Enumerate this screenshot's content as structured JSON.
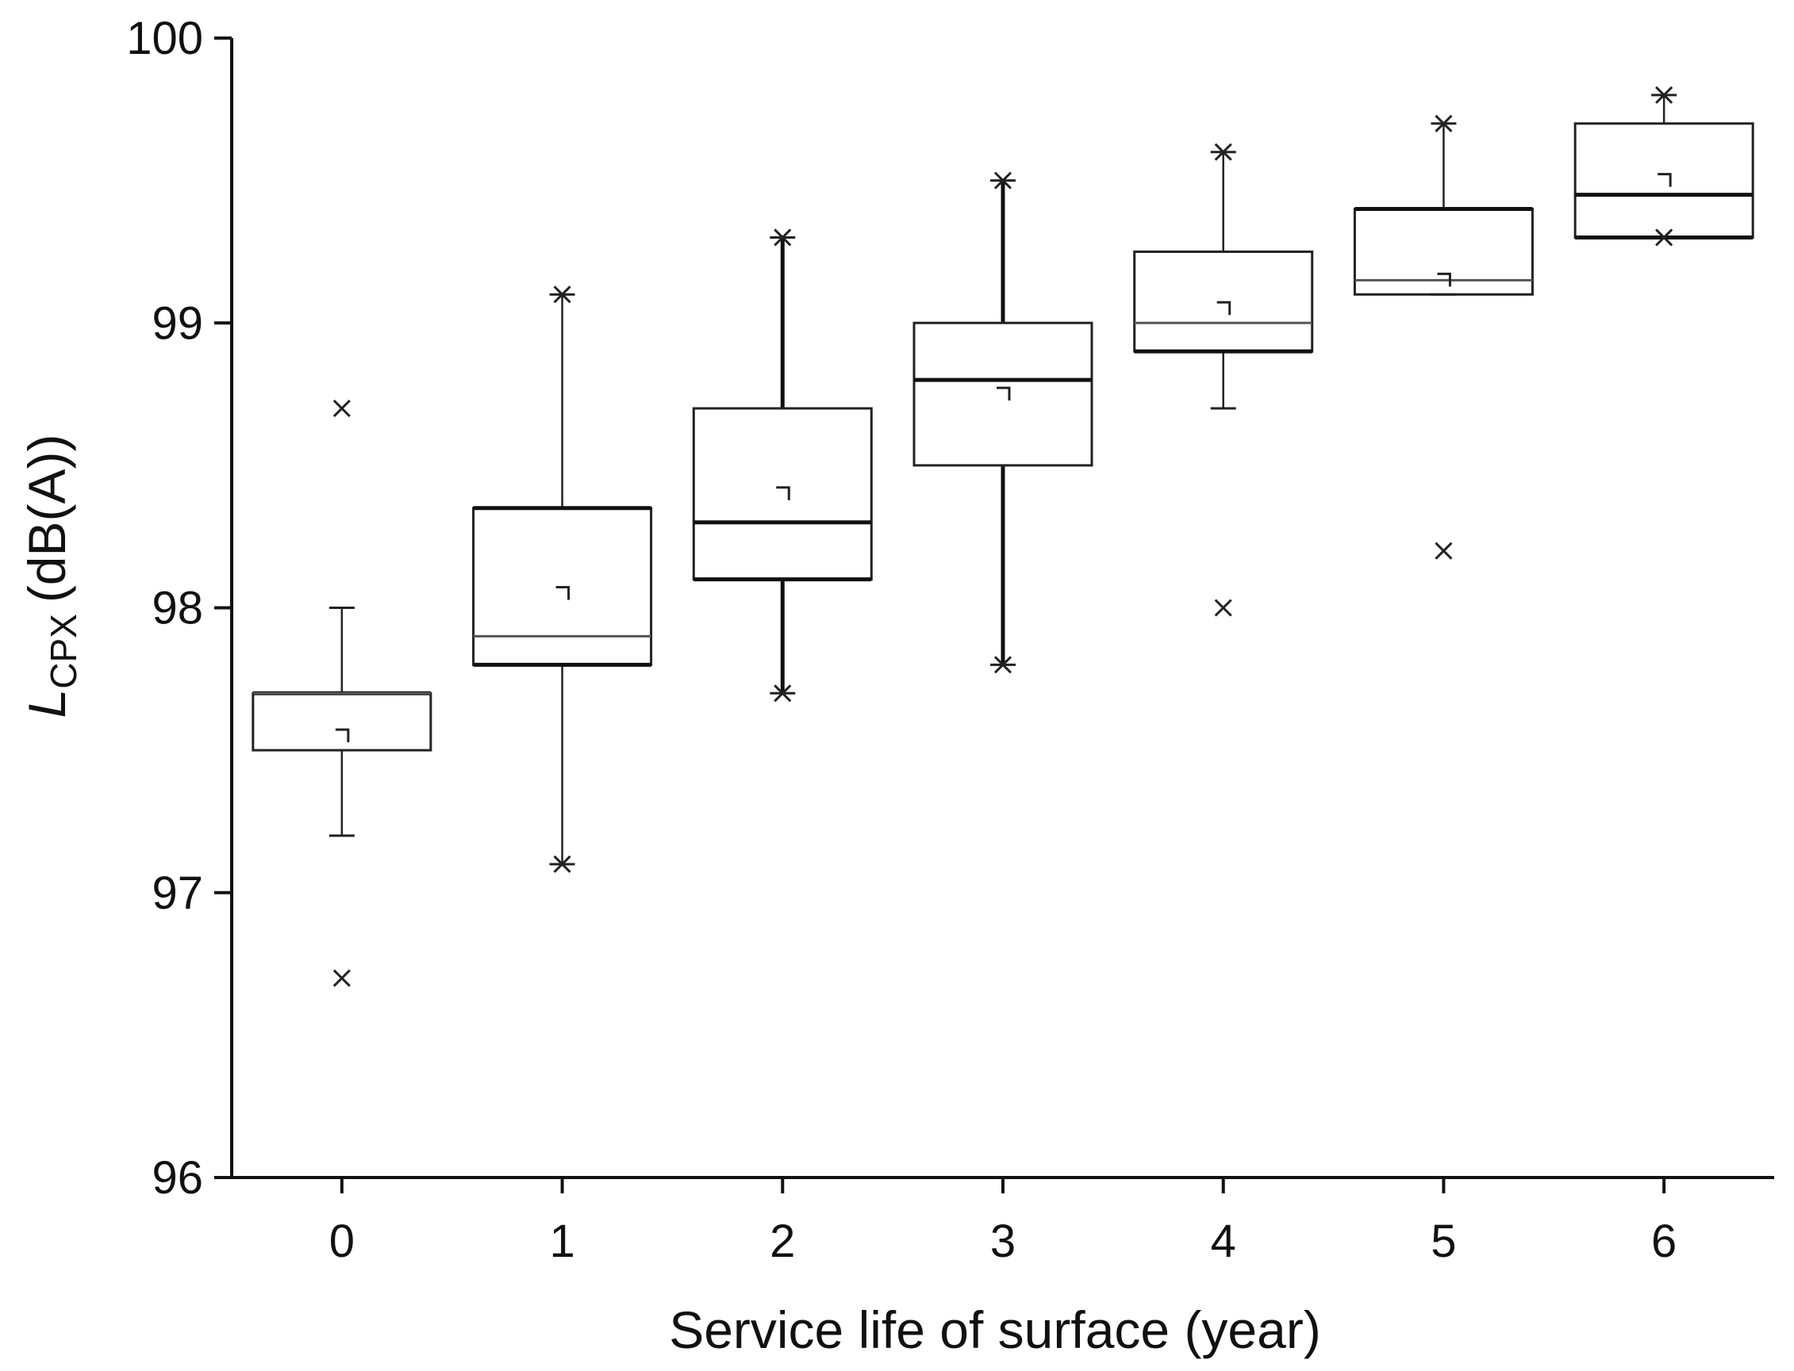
{
  "chart_data": {
    "type": "box",
    "title": "",
    "xlabel": "Service life of surface (year)",
    "ylabel_main": "L",
    "ylabel_sub": "CPX",
    "ylabel_unit": "(dB(A))",
    "ylim": [
      96,
      100
    ],
    "xlim": [
      -0.5,
      6.5
    ],
    "yticks": [
      "96",
      "97",
      "98",
      "99",
      "100"
    ],
    "xticks": [
      "0",
      "1",
      "2",
      "3",
      "4",
      "5",
      "6"
    ],
    "grid": false,
    "groups": [
      {
        "x": "0",
        "whisker_low": 97.2,
        "q1": 97.5,
        "median": 97.7,
        "q3": 97.7,
        "whisker_high": 98.0,
        "mean": 97.55,
        "min_marker": 96.7,
        "max_marker": 98.7
      },
      {
        "x": "1",
        "whisker_low": 97.1,
        "q1": 97.8,
        "median": 97.9,
        "q3": 98.35,
        "whisker_high": 99.1,
        "mean": 98.05,
        "min_marker": 97.1,
        "max_marker": 99.1
      },
      {
        "x": "2",
        "whisker_low": 97.7,
        "q1": 98.1,
        "median": 98.3,
        "q3": 98.7,
        "whisker_high": 99.3,
        "mean": 98.4,
        "min_marker": 97.7,
        "max_marker": 99.3
      },
      {
        "x": "3",
        "whisker_low": 97.8,
        "q1": 98.5,
        "median": 98.8,
        "q3": 99.0,
        "whisker_high": 99.5,
        "mean": 98.75,
        "min_marker": 97.8,
        "max_marker": 99.5
      },
      {
        "x": "4",
        "whisker_low": 98.7,
        "q1": 98.9,
        "median": 99.0,
        "q3": 99.25,
        "whisker_high": 99.6,
        "mean": 99.05,
        "min_marker": 98.0,
        "max_marker": 99.6
      },
      {
        "x": "5",
        "whisker_low": 99.1,
        "q1": 99.1,
        "median": 99.15,
        "q3": 99.4,
        "whisker_high": 99.7,
        "mean": 99.15,
        "min_marker": 98.2,
        "max_marker": 99.7
      },
      {
        "x": "6",
        "whisker_low": 99.3,
        "q1": 99.3,
        "median": 99.45,
        "q3": 99.7,
        "whisker_high": 99.8,
        "mean": 99.5,
        "min_marker": 99.3,
        "max_marker": 99.8
      }
    ]
  }
}
